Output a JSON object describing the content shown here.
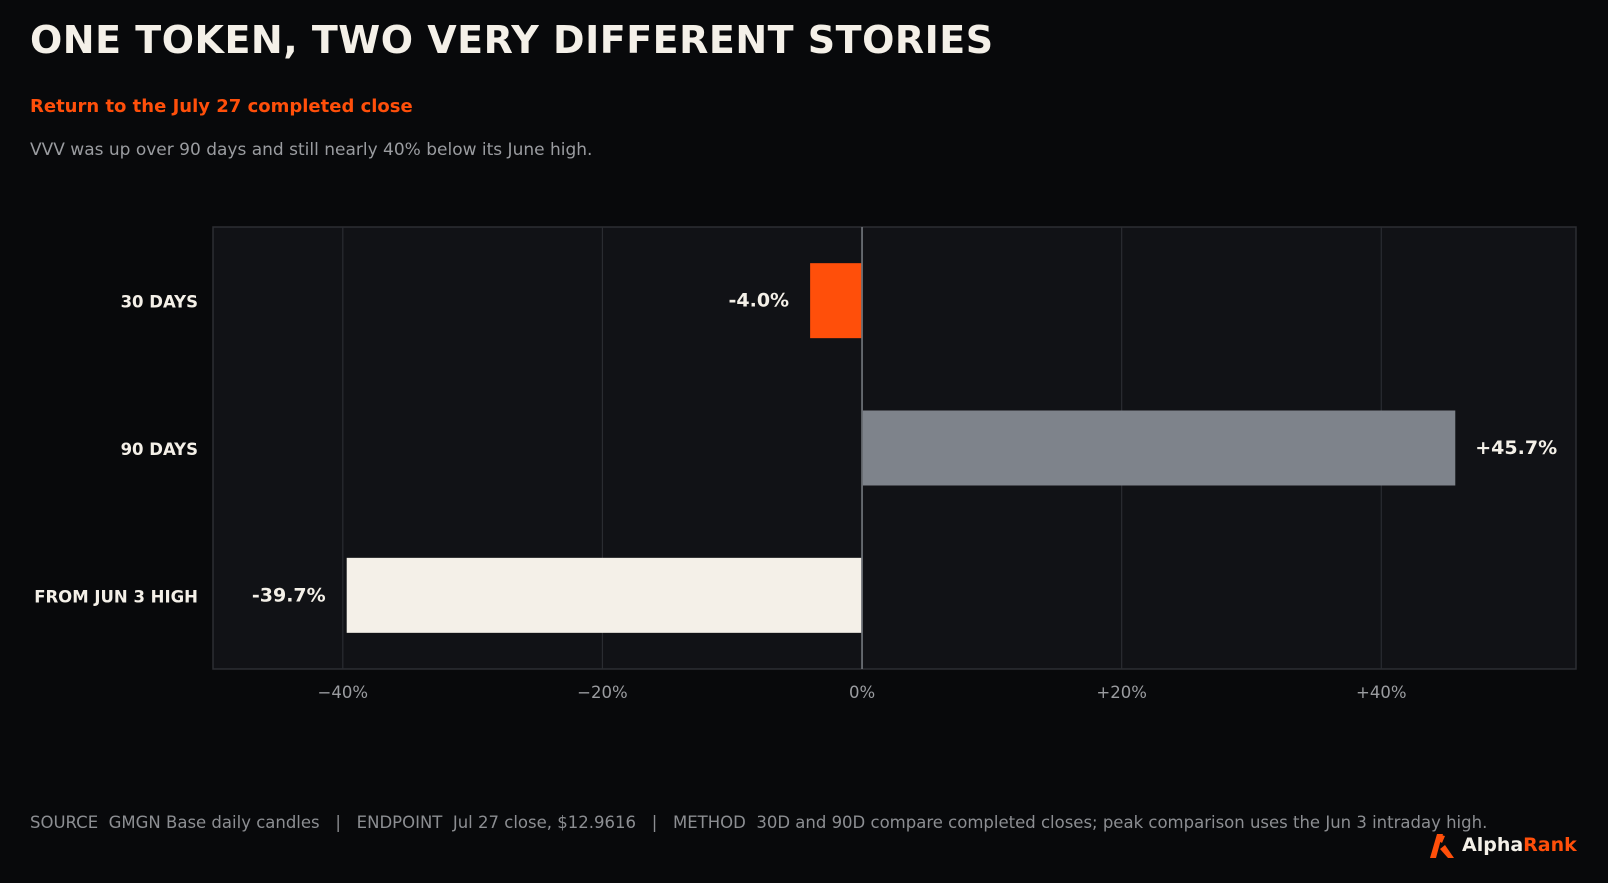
{
  "header": {
    "title": "ONE TOKEN, TWO VERY DIFFERENT STORIES",
    "subtitle": "Return to the July 27 completed close",
    "description": "VVV was up over 90 days and still nearly 40% below its June high."
  },
  "chart_data": {
    "type": "bar",
    "orientation": "horizontal",
    "categories": [
      "30 DAYS",
      "90 DAYS",
      "FROM JUN 3 HIGH"
    ],
    "values": [
      -4.0,
      45.7,
      -39.7
    ],
    "value_labels": [
      "-4.0%",
      "+45.7%",
      "-39.7%"
    ],
    "bar_colors": [
      "#ff4f0a",
      "#7e838b",
      "#f4f0e8"
    ],
    "xlim": [
      -50,
      55
    ],
    "x_ticks": [
      -40,
      -20,
      0,
      20,
      40
    ],
    "x_tick_labels": [
      "−40%",
      "−20%",
      "0%",
      "+20%",
      "+40%"
    ],
    "grid": "vertical",
    "title": "",
    "xlabel": "",
    "ylabel": ""
  },
  "footer": {
    "text": "SOURCE  GMGN Base daily candles   |   ENDPOINT  Jul 27 close, $12.9616   |   METHOD  30D and 90D compare completed closes; peak comparison uses the Jun 3 intraday high."
  },
  "brand": {
    "name_part1": "Alpha",
    "name_part2": "Rank",
    "icon": "alpharank-logo-icon",
    "accent_color": "#ff4f0a"
  }
}
